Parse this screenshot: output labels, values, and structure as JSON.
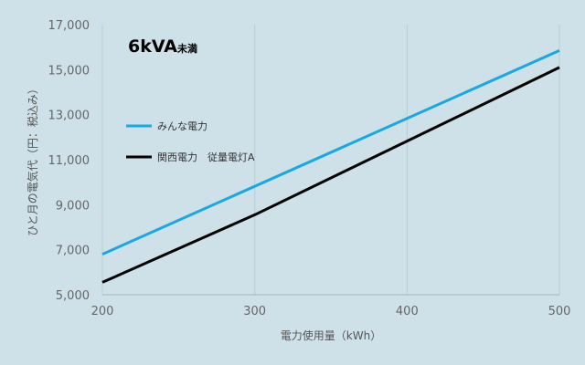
{
  "chart_data": {
    "type": "line",
    "title": "6kVA",
    "title_suffix": "未満",
    "xlabel": "電力使用量（kWh）",
    "ylabel": "ひと月の電気代（円：税込み）",
    "xlim": [
      200,
      500
    ],
    "ylim": [
      5000,
      17000
    ],
    "x_ticks": [
      200,
      300,
      400,
      500
    ],
    "x_tick_labels": [
      "200",
      "300",
      "400",
      "500"
    ],
    "y_ticks": [
      5000,
      7000,
      9000,
      11000,
      13000,
      15000,
      17000
    ],
    "y_tick_labels": [
      "5,000",
      "7,000",
      "9,000",
      "11,000",
      "13,000",
      "15,000",
      "17,000"
    ],
    "grid": "vertical",
    "legend_position": "left",
    "series": [
      {
        "name": "みんな電力",
        "color": "#1aa8e3",
        "x": [
          200,
          500
        ],
        "y": [
          6800,
          15850
        ]
      },
      {
        "name": "関西電力　従量電灯A",
        "color": "#000000",
        "x": [
          200,
          300,
          500
        ],
        "y": [
          5550,
          8550,
          15100
        ]
      }
    ]
  }
}
